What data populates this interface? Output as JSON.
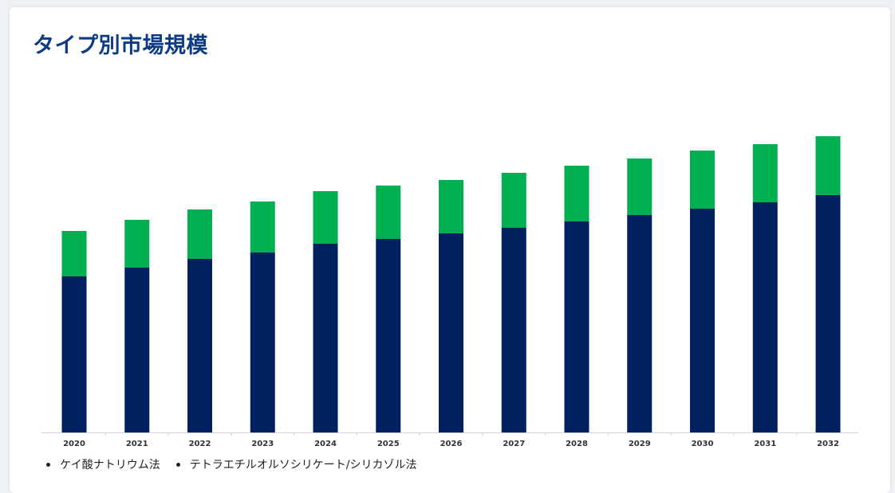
{
  "page": {
    "title": "タイプ別市場規模"
  },
  "colors": {
    "title": "#0e3c84",
    "series_1": "#002060",
    "series_2": "#00b050"
  },
  "chart_data": {
    "type": "bar",
    "stacked": true,
    "title": "",
    "xlabel": "",
    "ylabel": "",
    "categories": [
      "2020",
      "2021",
      "2022",
      "2023",
      "2024",
      "2025",
      "2026",
      "2027",
      "2028",
      "2029",
      "2030",
      "2031",
      "2032"
    ],
    "series": [
      {
        "name": "ケイ酸ナトリウム法",
        "values": [
          196,
          207,
          218,
          226,
          237,
          243,
          250,
          257,
          265,
          273,
          281,
          289,
          298
        ]
      },
      {
        "name": "テトラエチルオルソシリケート/シリカゾル法",
        "values": [
          57,
          60,
          62,
          64,
          66,
          67,
          67,
          69,
          70,
          71,
          73,
          73,
          74
        ]
      }
    ],
    "ylim": [
      0,
      400
    ],
    "grid": false,
    "legend_position": "bottom-left"
  }
}
